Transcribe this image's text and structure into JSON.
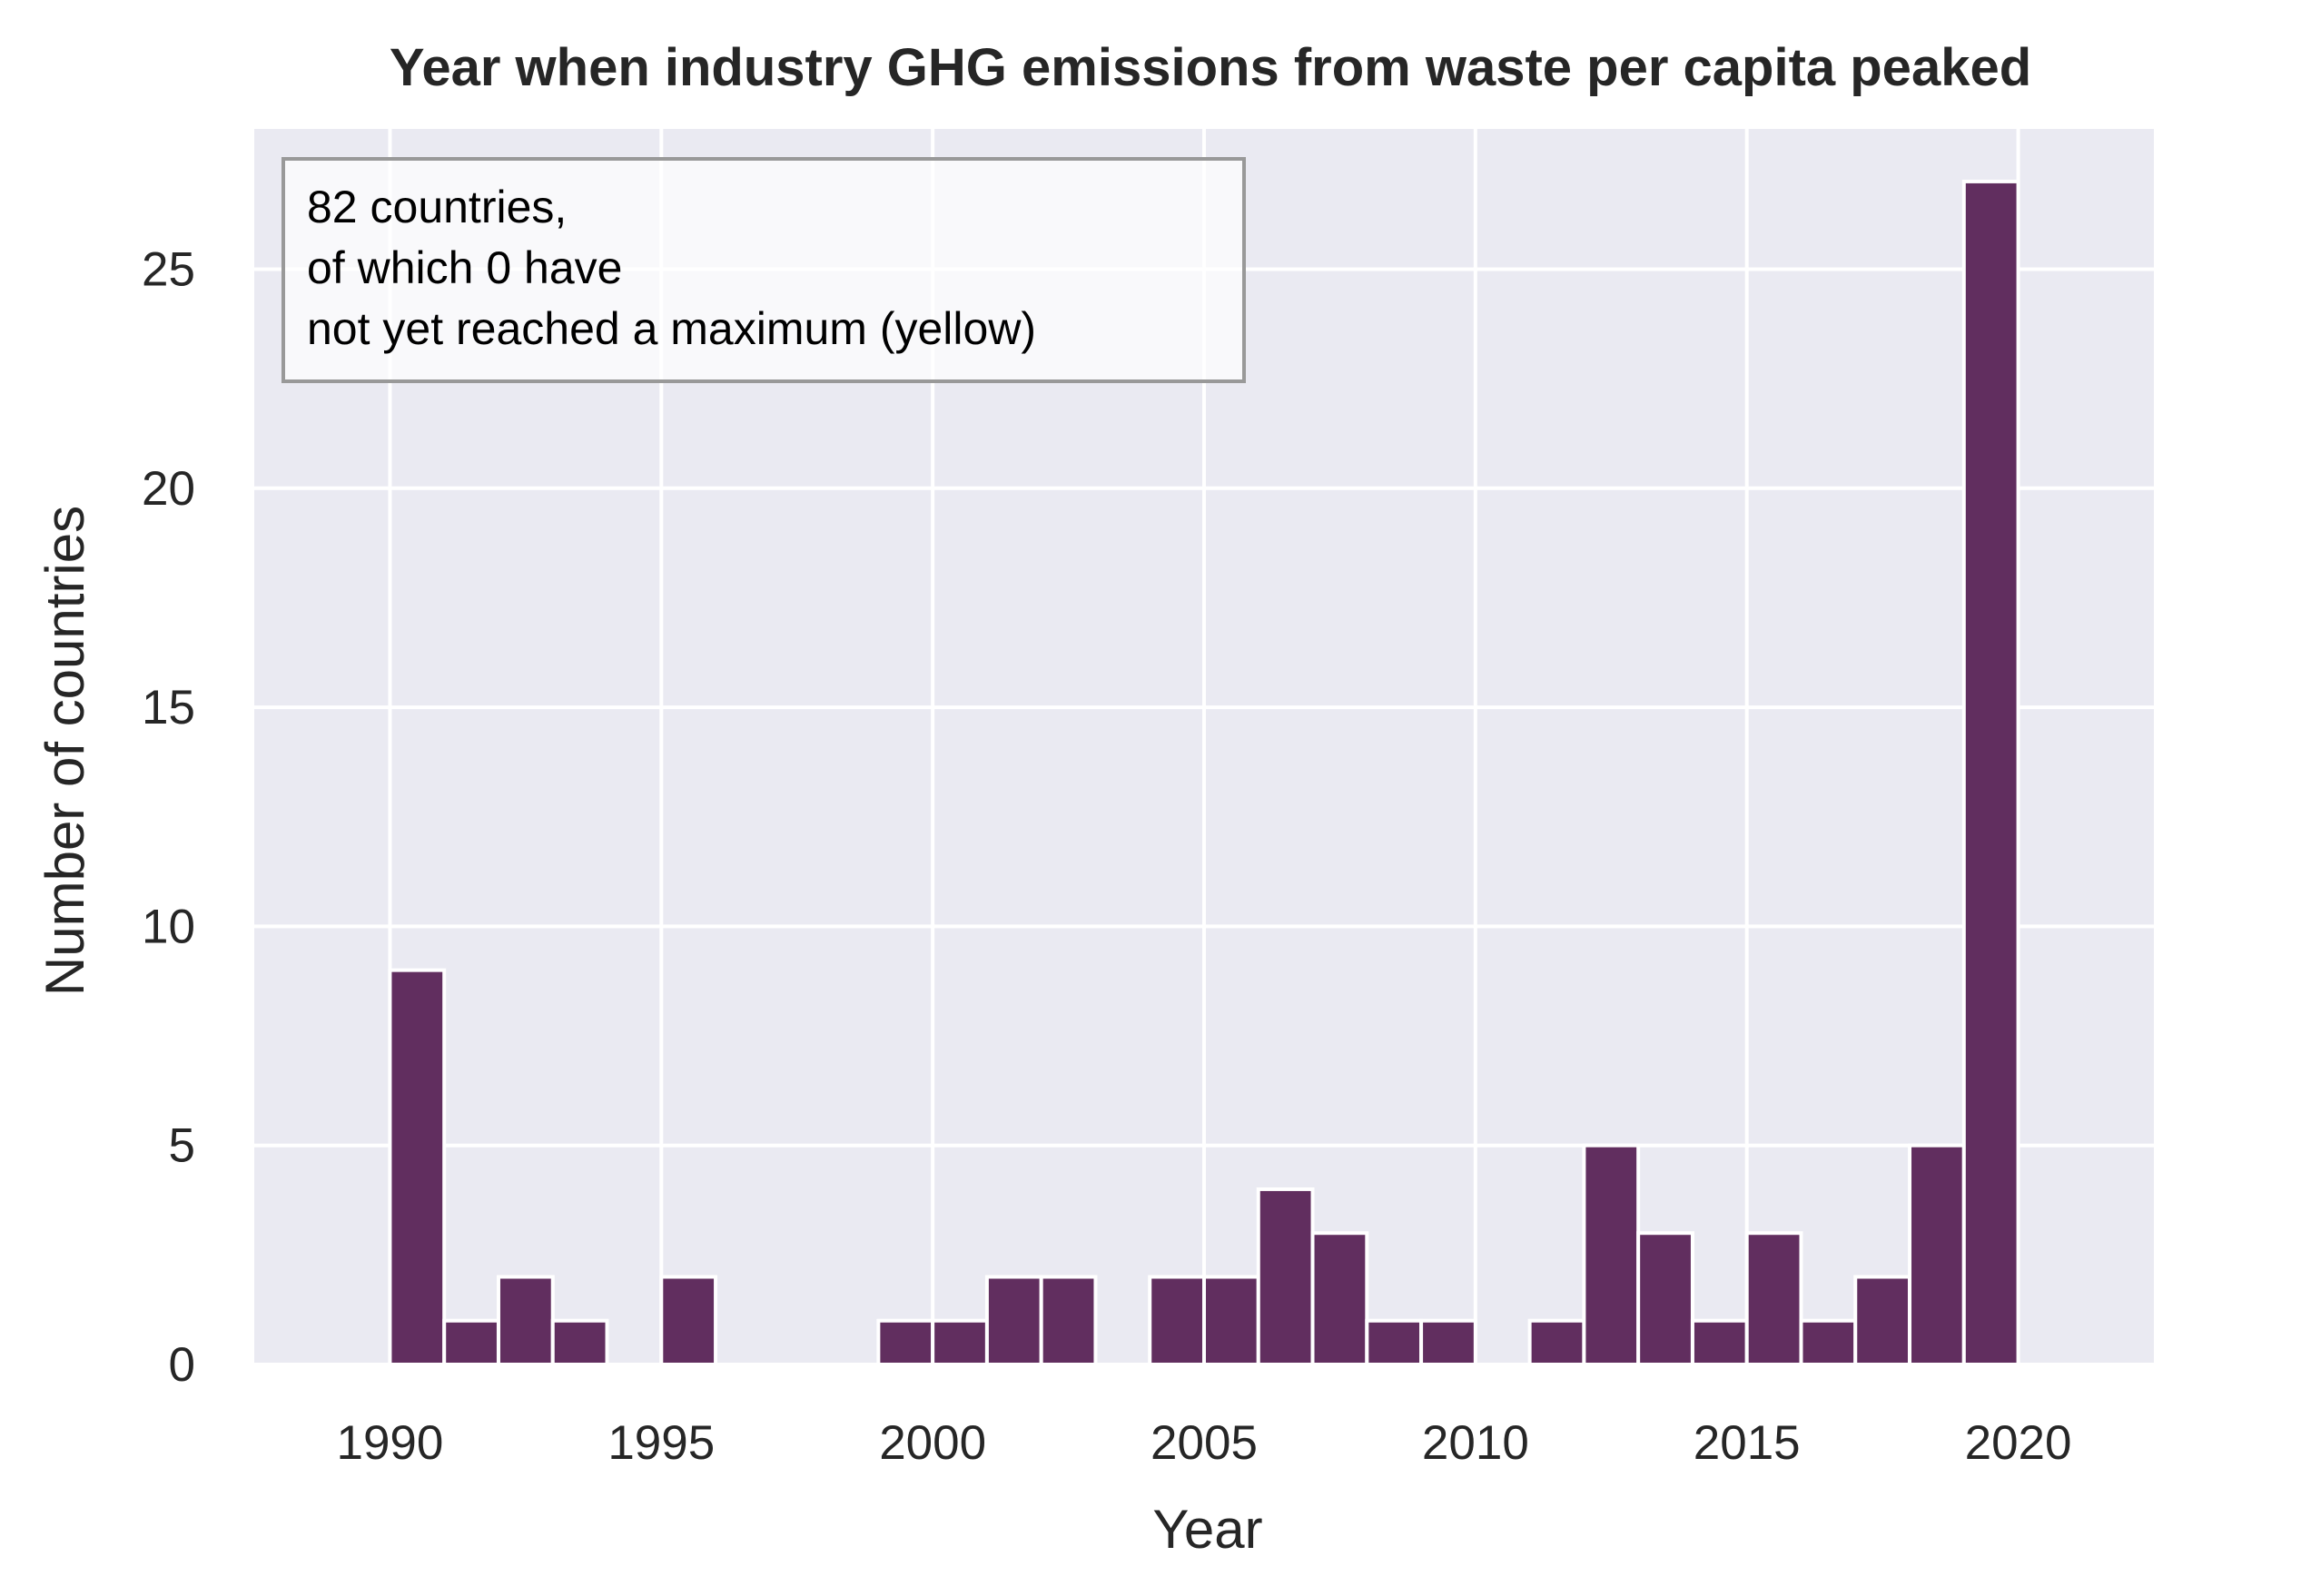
{
  "chart_data": {
    "type": "bar",
    "title": "Year when industry GHG emissions from waste per capita peaked",
    "xlabel": "Year",
    "ylabel": "Number of countries",
    "xlim": [
      1987.5,
      2022.5
    ],
    "ylim": [
      0,
      28.2
    ],
    "xticks": [
      1990,
      1995,
      2000,
      2005,
      2010,
      2015,
      2020
    ],
    "yticks": [
      0,
      5,
      10,
      15,
      20,
      25
    ],
    "grid": true,
    "bin_width": 1,
    "bins": [
      {
        "x": 1990,
        "count": 9
      },
      {
        "x": 1991,
        "count": 1
      },
      {
        "x": 1992,
        "count": 2
      },
      {
        "x": 1993,
        "count": 1
      },
      {
        "x": 1994,
        "count": 0
      },
      {
        "x": 1995,
        "count": 2
      },
      {
        "x": 1996,
        "count": 0
      },
      {
        "x": 1997,
        "count": 0
      },
      {
        "x": 1998,
        "count": 0
      },
      {
        "x": 1999,
        "count": 1
      },
      {
        "x": 2000,
        "count": 1
      },
      {
        "x": 2001,
        "count": 2
      },
      {
        "x": 2002,
        "count": 2
      },
      {
        "x": 2003,
        "count": 0
      },
      {
        "x": 2004,
        "count": 2
      },
      {
        "x": 2005,
        "count": 2
      },
      {
        "x": 2006,
        "count": 4
      },
      {
        "x": 2007,
        "count": 3
      },
      {
        "x": 2008,
        "count": 1
      },
      {
        "x": 2009,
        "count": 1
      },
      {
        "x": 2010,
        "count": 0
      },
      {
        "x": 2011,
        "count": 1
      },
      {
        "x": 2012,
        "count": 5
      },
      {
        "x": 2013,
        "count": 3
      },
      {
        "x": 2014,
        "count": 1
      },
      {
        "x": 2015,
        "count": 3
      },
      {
        "x": 2016,
        "count": 1
      },
      {
        "x": 2017,
        "count": 2
      },
      {
        "x": 2018,
        "count": 5
      },
      {
        "x": 2019,
        "count": 27
      }
    ],
    "annotation": {
      "lines": [
        "82 countries,",
        "of which 0 have",
        "not yet reached a maximum (yellow)"
      ],
      "placement": "top-left"
    },
    "colors": {
      "bar": "#612e5f",
      "plot_background": "#eaeaf2",
      "grid": "#ffffff"
    }
  }
}
